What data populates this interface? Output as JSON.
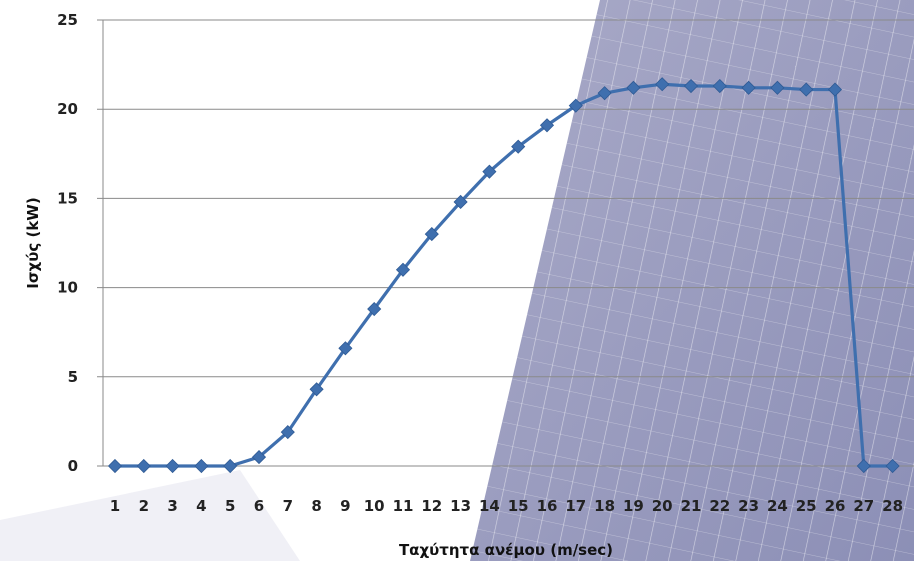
{
  "chart_data": {
    "type": "line",
    "title": "",
    "xlabel": "Ταχύτητα ανέμου (m/sec)",
    "ylabel": "Ισχύς (kW)",
    "ylim": [
      0,
      25
    ],
    "yticks": [
      0,
      5,
      10,
      15,
      20,
      25
    ],
    "grid": true,
    "legend": "none",
    "x": [
      1,
      2,
      3,
      4,
      5,
      6,
      7,
      8,
      9,
      10,
      11,
      12,
      13,
      14,
      15,
      16,
      17,
      18,
      19,
      20,
      21,
      22,
      23,
      24,
      25,
      26,
      27,
      28
    ],
    "series": [
      {
        "values": [
          0,
          0,
          0,
          0,
          0,
          0.5,
          1.9,
          4.3,
          6.6,
          8.8,
          11.0,
          13.0,
          14.8,
          16.5,
          17.9,
          19.1,
          20.2,
          20.9,
          21.2,
          21.4,
          21.3,
          21.3,
          21.2,
          21.2,
          21.1,
          21.1,
          0,
          0
        ],
        "color": "#3f6fae"
      }
    ],
    "background_image": "solar-panel-photo"
  }
}
